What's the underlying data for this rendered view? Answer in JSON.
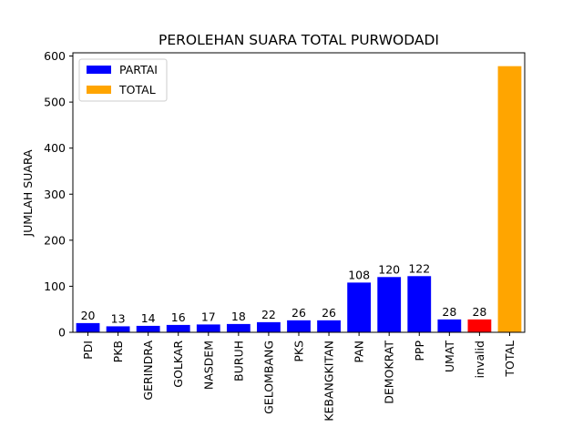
{
  "chart_data": {
    "type": "bar",
    "title": "PEROLEHAN SUARA TOTAL PURWODADI",
    "xlabel": "",
    "ylabel": "JUMLAH SUARA",
    "categories": [
      "PDI",
      "PKB",
      "GERINDRA",
      "GOLKAR",
      "NASDEM",
      "BURUH",
      "GELOMBANG",
      "PKS",
      "KEBANGKITAN",
      "PAN",
      "DEMOKRAT",
      "PPP",
      "UMAT",
      "invalid",
      "TOTAL"
    ],
    "values": [
      20,
      13,
      14,
      16,
      17,
      18,
      22,
      26,
      26,
      108,
      120,
      122,
      28,
      28,
      578
    ],
    "data_labels": [
      "20",
      "13",
      "14",
      "16",
      "17",
      "18",
      "22",
      "26",
      "26",
      "108",
      "120",
      "122",
      "28",
      "28",
      ""
    ],
    "bar_colors": [
      "#0000ff",
      "#0000ff",
      "#0000ff",
      "#0000ff",
      "#0000ff",
      "#0000ff",
      "#0000ff",
      "#0000ff",
      "#0000ff",
      "#0000ff",
      "#0000ff",
      "#0000ff",
      "#0000ff",
      "#ff0000",
      "#ffa500"
    ],
    "ylim": [
      0,
      607
    ],
    "yticks": [
      0,
      100,
      200,
      300,
      400,
      500,
      600
    ],
    "grid": false,
    "legend": {
      "placement": "top-left",
      "entries": [
        {
          "label": "PARTAI",
          "color": "#0000ff"
        },
        {
          "label": "TOTAL",
          "color": "#ffa500"
        }
      ]
    }
  }
}
